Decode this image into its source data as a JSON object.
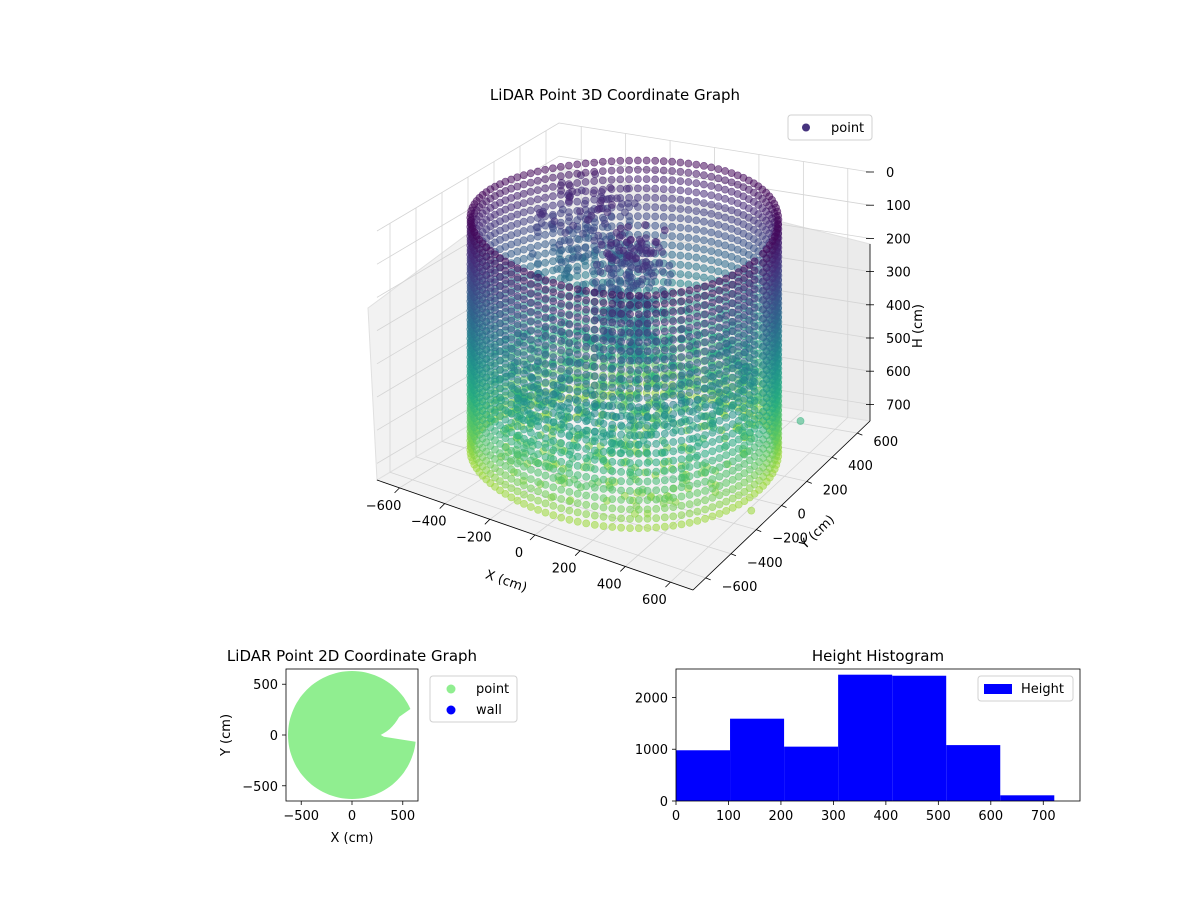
{
  "chart_data": [
    {
      "type": "scatter3d",
      "title": "LiDAR Point 3D Coordinate Graph",
      "xlabel": "X (cm)",
      "ylabel": "Y (cm)",
      "zlabel": "H (cm)",
      "xlim": [
        -700,
        700
      ],
      "ylim": [
        -700,
        700
      ],
      "zlim": [
        0,
        750
      ],
      "z_inverted": true,
      "xticks": [
        "−600",
        "−400",
        "−200",
        "0",
        "200",
        "400",
        "600"
      ],
      "yticks": [
        "−600",
        "−400",
        "−200",
        "0",
        "200",
        "400",
        "600"
      ],
      "zticks": [
        "0",
        "100",
        "200",
        "300",
        "400",
        "500",
        "600",
        "700"
      ],
      "colormap": "viridis",
      "legend": {
        "placement": "top-right",
        "entries": [
          {
            "label": "point",
            "color": "#46337e"
          }
        ]
      },
      "series": [
        {
          "name": "point",
          "shape": "circular wall with interior clutter",
          "wall_radius_cm": 600,
          "height_range_cm": [
            0,
            720
          ],
          "outliers": [
            {
              "x": 700,
              "y": 150,
              "z": 550
            },
            {
              "x": 650,
              "y": -150,
              "z": 720
            }
          ]
        }
      ]
    },
    {
      "type": "scatter",
      "title": "LiDAR Point 2D Coordinate Graph",
      "xlabel": "X (cm)",
      "ylabel": "Y (cm)",
      "xlim": [
        -650,
        650
      ],
      "ylim": [
        -650,
        650
      ],
      "xticks": [
        "−500",
        "0",
        "500"
      ],
      "yticks": [
        "−500",
        "0",
        "500"
      ],
      "legend": {
        "placement": "outside-right",
        "entries": [
          {
            "label": "point",
            "color": "#90ee90"
          },
          {
            "label": "wall",
            "color": "#0000ff"
          }
        ]
      },
      "series": [
        {
          "name": "point",
          "color": "#90ee90",
          "shape": "filled disc, radius 630 cm, notch on right side"
        }
      ]
    },
    {
      "type": "histogram",
      "title": "Height Histogram",
      "xlim": [
        0,
        770
      ],
      "ylim": [
        0,
        2550
      ],
      "xticks": [
        "0",
        "100",
        "200",
        "300",
        "400",
        "500",
        "600",
        "700"
      ],
      "yticks": [
        "0",
        "1000",
        "2000"
      ],
      "legend": {
        "placement": "top-right",
        "entries": [
          {
            "label": "Height",
            "color": "#0000ff"
          }
        ]
      },
      "bins": [
        {
          "x0": 0,
          "x1": 103,
          "count": 980
        },
        {
          "x0": 103,
          "x1": 206,
          "count": 1590
        },
        {
          "x0": 206,
          "x1": 309,
          "count": 1050
        },
        {
          "x0": 309,
          "x1": 412,
          "count": 2440
        },
        {
          "x0": 412,
          "x1": 515,
          "count": 2420
        },
        {
          "x0": 515,
          "x1": 618,
          "count": 1080
        },
        {
          "x0": 618,
          "x1": 721,
          "count": 110
        }
      ],
      "color": "#0000ff"
    }
  ]
}
